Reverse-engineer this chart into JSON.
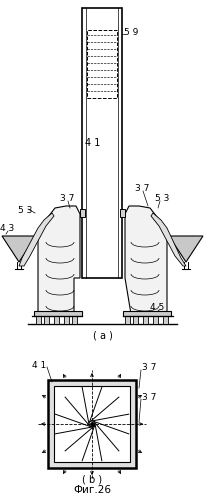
{
  "fig_width": 2.05,
  "fig_height": 4.98,
  "dpi": 100,
  "bg_color": "#ffffff",
  "line_color": "#000000",
  "gray_fill": "#c8c8c8",
  "light_gray": "#d8d8d8",
  "title": "Фиг.26",
  "label_59": "5 9",
  "label_41a": "4 1",
  "label_53a": "5 3",
  "label_53b": "5 3",
  "label_37a": "3 7",
  "label_43": "4 3",
  "label_45": "4 5",
  "label_41b": "4 1",
  "label_37b": "3 7",
  "label_37c": "3 7",
  "sub_a": "( a )",
  "sub_b": "( b )"
}
